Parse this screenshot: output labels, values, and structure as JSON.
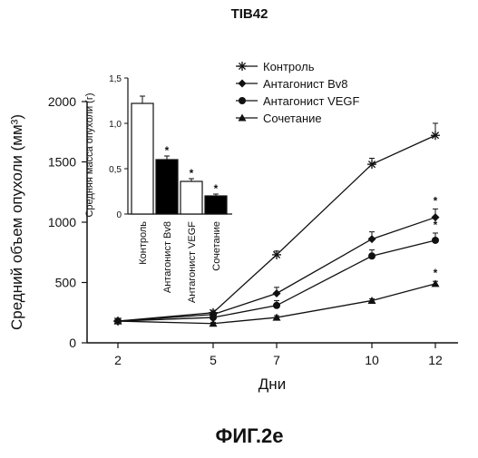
{
  "figure": {
    "title": "TIB42",
    "caption": "ФИГ.2е"
  },
  "chart_data": [
    {
      "type": "line",
      "title": "",
      "xlabel": "Дни",
      "ylabel": "Средний объем опухоли (мм³)",
      "x": [
        2,
        5,
        7,
        10,
        12
      ],
      "x_ticks": [
        "2",
        "5",
        "7",
        "10",
        "12"
      ],
      "ylim": [
        0,
        2000
      ],
      "y_ticks": [
        "0",
        "500",
        "1000",
        "1500",
        "2000"
      ],
      "legend_position": "top-right",
      "series": [
        {
          "name": "Контроль",
          "marker": "asterisk",
          "values": [
            180,
            250,
            730,
            1480,
            1720
          ],
          "error": [
            0,
            20,
            30,
            50,
            100
          ],
          "significance": [
            false,
            false,
            false,
            false,
            false
          ]
        },
        {
          "name": "Антагонист Bv8",
          "marker": "diamond",
          "values": [
            180,
            235,
            410,
            860,
            1040
          ],
          "error": [
            0,
            20,
            50,
            60,
            70
          ],
          "significance": [
            false,
            false,
            false,
            false,
            true
          ]
        },
        {
          "name": "Антагонист VEGF",
          "marker": "circle",
          "values": [
            180,
            210,
            310,
            720,
            850
          ],
          "error": [
            0,
            20,
            40,
            50,
            60
          ],
          "significance": [
            false,
            false,
            false,
            false,
            true
          ]
        },
        {
          "name": "Сочетание",
          "marker": "triangle",
          "values": [
            180,
            160,
            210,
            350,
            490
          ],
          "error": [
            0,
            10,
            15,
            15,
            20
          ],
          "significance": [
            false,
            false,
            false,
            false,
            true
          ]
        }
      ]
    },
    {
      "type": "bar",
      "title": "",
      "ylabel": "Средняя масса опухоли (г)",
      "ylim": [
        0,
        1.5
      ],
      "y_ticks": [
        "0",
        "0,5",
        "1,0",
        "1,5"
      ],
      "categories": [
        "Контроль",
        "Антагонист Bv8",
        "Антагонист VEGF",
        "Сочетание"
      ],
      "values": [
        1.22,
        0.6,
        0.36,
        0.2
      ],
      "error": [
        0.08,
        0.04,
        0.03,
        0.02
      ],
      "fill": [
        "#ffffff",
        "#000000",
        "#ffffff",
        "#000000"
      ],
      "significance": [
        "",
        "*",
        "*",
        "*"
      ]
    }
  ]
}
